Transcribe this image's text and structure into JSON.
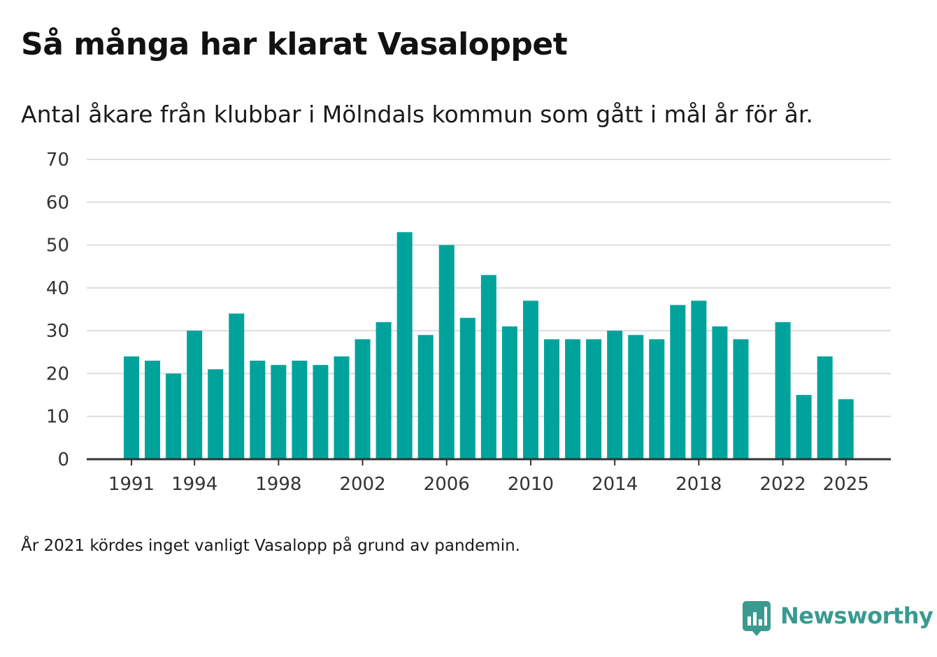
{
  "title": "Så många har klarat Vasaloppet",
  "subtitle": "Antal åkare från klubbar i Mölndals kommun som gått i mål år för år.",
  "footnote": "År 2021 kördes inget vanligt Vasalopp på grund av pandemin.",
  "brand": {
    "name": "Newsworthy",
    "icon": "newsworthy-logo-icon",
    "color": "#3a9a90"
  },
  "colors": {
    "bar": "#00a39b",
    "grid": "#dddddd",
    "axis": "#333333"
  },
  "chart_data": {
    "type": "bar",
    "title": "Så många har klarat Vasaloppet",
    "subtitle": "Antal åkare från klubbar i Mölndals kommun som gått i mål år för år.",
    "xlabel": "",
    "ylabel": "",
    "ylim": [
      0,
      70
    ],
    "yticks": [
      0,
      10,
      20,
      30,
      40,
      50,
      60,
      70
    ],
    "xticks": [
      1991,
      1994,
      1998,
      2002,
      2006,
      2010,
      2014,
      2018,
      2022,
      2025
    ],
    "grid": true,
    "categories": [
      1991,
      1992,
      1993,
      1994,
      1995,
      1996,
      1997,
      1998,
      1999,
      2000,
      2001,
      2002,
      2003,
      2004,
      2005,
      2006,
      2007,
      2008,
      2009,
      2010,
      2011,
      2012,
      2013,
      2014,
      2015,
      2016,
      2017,
      2018,
      2019,
      2020,
      2021,
      2022,
      2023,
      2024,
      2025
    ],
    "values": [
      24,
      23,
      20,
      30,
      21,
      34,
      23,
      22,
      23,
      22,
      24,
      28,
      32,
      53,
      29,
      50,
      33,
      43,
      31,
      37,
      28,
      28,
      28,
      30,
      29,
      28,
      36,
      37,
      31,
      28,
      null,
      32,
      15,
      24,
      14
    ]
  }
}
